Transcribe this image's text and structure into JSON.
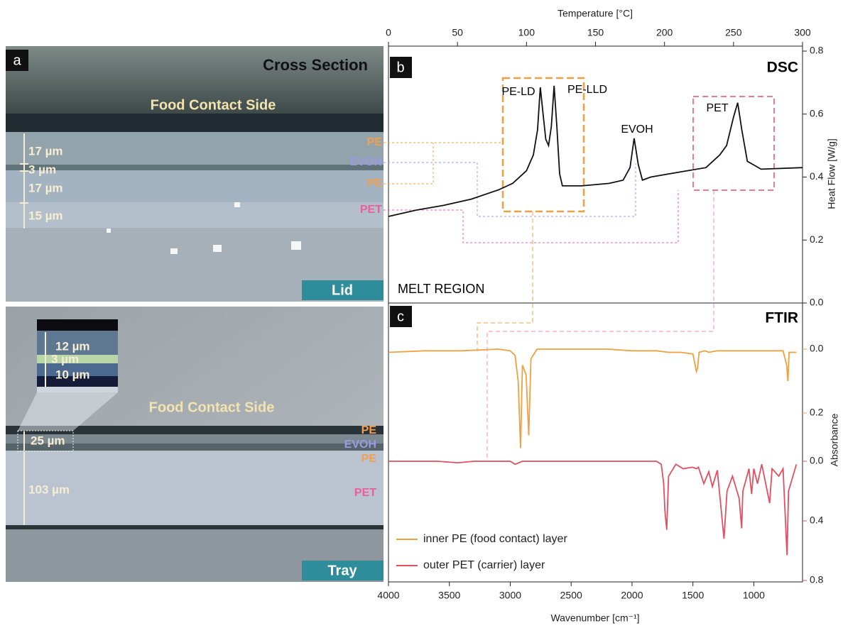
{
  "panel_a": {
    "label": "a",
    "title": "Cross Section",
    "lid": {
      "side": "Food Contact Side",
      "layers": [
        "PE",
        "EVOH",
        "PE",
        "PET"
      ],
      "thicknesses": [
        "17 µm",
        "3 µm",
        "17 µm",
        "15 µm"
      ],
      "name": "Lid"
    },
    "tray": {
      "inset_thicknesses": [
        "12 µm",
        "3 µm",
        "10 µm"
      ],
      "side": "Food Contact Side",
      "total_thickness": "25 µm",
      "layers": [
        "PE",
        "EVOH",
        "PE",
        "PET"
      ],
      "pet_thickness": "103 µm",
      "name": "Tray"
    }
  },
  "chart_data": [
    {
      "type": "line",
      "panel_label": "b",
      "title": "DSC",
      "region_label": "MELT REGION",
      "xlabel": "Temperature [°C]",
      "ylabel": "Heat Flow [W/g]",
      "x": [
        0,
        20,
        40,
        60,
        80,
        90,
        100,
        105,
        108,
        110,
        112,
        114,
        116,
        118,
        120,
        122,
        124,
        126,
        140,
        160,
        170,
        175,
        178,
        181,
        184,
        190,
        210,
        230,
        240,
        245,
        250,
        253,
        256,
        260,
        270,
        300
      ],
      "series": [
        {
          "color": "#111111",
          "values": [
            0.275,
            0.295,
            0.31,
            0.33,
            0.36,
            0.38,
            0.42,
            0.47,
            0.55,
            0.685,
            0.6,
            0.52,
            0.5,
            0.56,
            0.69,
            0.56,
            0.41,
            0.372,
            0.372,
            0.38,
            0.39,
            0.43,
            0.523,
            0.44,
            0.39,
            0.4,
            0.415,
            0.43,
            0.47,
            0.5,
            0.59,
            0.636,
            0.55,
            0.45,
            0.425,
            0.43
          ]
        }
      ],
      "xlim": [
        0,
        300
      ],
      "xticks": [
        0,
        50,
        100,
        150,
        200,
        250,
        300
      ],
      "ylim": [
        0,
        0.8
      ],
      "yticks": [
        {
          "value": 0,
          "label": "0.0"
        },
        0.2,
        0.4,
        0.6,
        0.8
      ],
      "annotations": [
        "PE-LD",
        "PE-LLD",
        "EVOH",
        "PET"
      ]
    },
    {
      "type": "line",
      "panel_label": "c",
      "title": "FTIR",
      "xlabel": "Wavenumber [cm⁻¹]",
      "ylabel": "Absorbance",
      "yreverse": true,
      "xlim": [
        4000,
        600
      ],
      "xticks": [
        4000,
        3500,
        3000,
        2500,
        2000,
        1500,
        1000
      ],
      "ylim": [
        -0.1,
        0.3
      ],
      "yticks": [
        {
          "value": 0,
          "label": "0.0"
        },
        0.2
      ],
      "y2lim": [
        -0.1,
        0.8
      ],
      "y2ticks": [
        {
          "value": 0,
          "label": "0.0"
        },
        0.4,
        0.8
      ],
      "series": [
        {
          "name": "inner PE (food contact) layer",
          "color": "#f0a040",
          "x": [
            4000,
            3700,
            3400,
            3100,
            3000,
            2960,
            2935,
            2915,
            2900,
            2870,
            2848,
            2830,
            2780,
            2500,
            2200,
            2000,
            1800,
            1700,
            1600,
            1500,
            1472,
            1462,
            1450,
            1400,
            1370,
            1300,
            1100,
            900,
            760,
            730,
            720,
            710,
            650
          ],
          "values": [
            0.01,
            0.005,
            0.005,
            0,
            0.005,
            0.02,
            0.1,
            0.31,
            0.05,
            0.08,
            0.27,
            0.03,
            0,
            0,
            0,
            0.005,
            0.005,
            0.01,
            0.01,
            0.015,
            0.07,
            0.06,
            0.01,
            0.005,
            0.01,
            0.005,
            0.005,
            0.005,
            0.005,
            0.05,
            0.1,
            0.01,
            0.01
          ]
        },
        {
          "name": "outer PET (carrier) layer",
          "color": "#e05060",
          "axis": "y2",
          "x": [
            4000,
            3600,
            3430,
            3300,
            3000,
            2960,
            2900,
            2500,
            2000,
            1800,
            1760,
            1740,
            1730,
            1715,
            1700,
            1640,
            1580,
            1505,
            1470,
            1455,
            1410,
            1370,
            1340,
            1300,
            1265,
            1245,
            1220,
            1175,
            1120,
            1100,
            1090,
            1040,
            1018,
            1000,
            970,
            935,
            870,
            850,
            795,
            760,
            727,
            715,
            650
          ],
          "values": [
            0,
            0,
            0.01,
            0,
            0,
            0.02,
            0,
            0,
            0,
            0,
            0.02,
            0.15,
            0.33,
            0.46,
            0.1,
            0.02,
            0.05,
            0.04,
            0.05,
            0.04,
            0.15,
            0.07,
            0.17,
            0.06,
            0.35,
            0.52,
            0.2,
            0.1,
            0.25,
            0.45,
            0.2,
            0.05,
            0.22,
            0.05,
            0.15,
            0.02,
            0.28,
            0.05,
            0.1,
            0.05,
            0.63,
            0.2,
            0.02
          ]
        }
      ]
    }
  ]
}
